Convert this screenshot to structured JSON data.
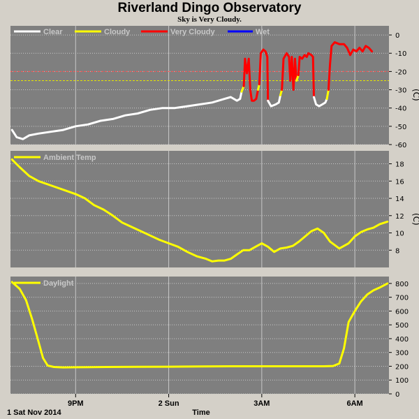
{
  "header": {
    "title": "Riverland Dingo Observatory",
    "subtitle": "Sky is Very Cloudy."
  },
  "colors": {
    "panel_bg": "#7f7f7f",
    "page_bg": "#d4d0c8",
    "grid": "#c8c8c8",
    "clear": "#ffffff",
    "cloudy": "#ffff00",
    "very_cloudy": "#ff0000",
    "wet": "#0000ff",
    "threshold_red": "#ff5050",
    "threshold_yellow": "#e6e600",
    "legend_text": "#c8c8c8"
  },
  "x_axis": {
    "label": "Time",
    "start_label": "1 Sat Nov 2014",
    "ticks": [
      {
        "hour": 21,
        "label": "9PM"
      },
      {
        "hour": 24,
        "label": "2 Sun"
      },
      {
        "hour": 27,
        "label": "3AM"
      },
      {
        "hour": 30,
        "label": "6AM"
      }
    ],
    "range_hours": [
      18.9,
      31.1
    ]
  },
  "chart_data": [
    {
      "type": "line",
      "panel": "sky",
      "legend": [
        "Clear",
        "Cloudy",
        "Very Cloudy",
        "Wet"
      ],
      "ylabel": "(C)",
      "ylim": [
        -60,
        5
      ],
      "yticks": [
        0,
        -10,
        -20,
        -30,
        -40,
        -50,
        -60
      ],
      "thresholds": [
        {
          "value": -20,
          "color": "red"
        },
        {
          "value": -25,
          "color": "yellow"
        }
      ],
      "segments": [
        {
          "state": "clear",
          "points": [
            [
              18.95,
              -52
            ],
            [
              19.1,
              -56
            ],
            [
              19.3,
              -57
            ],
            [
              19.5,
              -55
            ],
            [
              19.8,
              -54
            ],
            [
              20.2,
              -53
            ],
            [
              20.6,
              -52
            ],
            [
              21.0,
              -50
            ],
            [
              21.4,
              -49
            ],
            [
              21.8,
              -47
            ],
            [
              22.2,
              -46
            ],
            [
              22.6,
              -44
            ],
            [
              23.0,
              -43
            ],
            [
              23.4,
              -41
            ],
            [
              23.8,
              -40
            ],
            [
              24.2,
              -40
            ],
            [
              24.6,
              -39
            ],
            [
              25.0,
              -38
            ],
            [
              25.4,
              -37
            ],
            [
              25.8,
              -35
            ],
            [
              26.0,
              -34
            ],
            [
              26.2,
              -36
            ],
            [
              26.3,
              -35
            ],
            [
              26.35,
              -31
            ]
          ]
        },
        {
          "state": "cloudy",
          "points": [
            [
              26.35,
              -31
            ],
            [
              26.42,
              -28
            ]
          ]
        },
        {
          "state": "very_cloudy",
          "points": [
            [
              26.42,
              -28
            ],
            [
              26.46,
              -13
            ],
            [
              26.52,
              -21
            ],
            [
              26.58,
              -13
            ],
            [
              26.63,
              -30
            ],
            [
              26.68,
              -36
            ],
            [
              26.75,
              -36
            ],
            [
              26.82,
              -35
            ],
            [
              26.88,
              -30
            ]
          ]
        },
        {
          "state": "cloudy",
          "points": [
            [
              26.88,
              -30
            ],
            [
              26.92,
              -27
            ]
          ]
        },
        {
          "state": "very_cloudy",
          "points": [
            [
              26.92,
              -27
            ],
            [
              26.97,
              -10
            ],
            [
              27.05,
              -8
            ],
            [
              27.12,
              -9
            ],
            [
              27.18,
              -12
            ],
            [
              27.2,
              -36
            ]
          ]
        },
        {
          "state": "clear",
          "points": [
            [
              27.2,
              -36
            ],
            [
              27.3,
              -39
            ],
            [
              27.45,
              -38
            ],
            [
              27.55,
              -37
            ],
            [
              27.6,
              -33
            ]
          ]
        },
        {
          "state": "cloudy",
          "points": [
            [
              27.6,
              -33
            ],
            [
              27.65,
              -30
            ]
          ]
        },
        {
          "state": "very_cloudy",
          "points": [
            [
              27.65,
              -30
            ],
            [
              27.7,
              -13
            ],
            [
              27.8,
              -10
            ],
            [
              27.88,
              -12
            ],
            [
              27.92,
              -25
            ],
            [
              27.97,
              -12
            ],
            [
              28.02,
              -30
            ],
            [
              28.07,
              -13
            ],
            [
              28.12,
              -25
            ]
          ]
        },
        {
          "state": "cloudy",
          "points": [
            [
              28.12,
              -25
            ],
            [
              28.18,
              -22
            ]
          ]
        },
        {
          "state": "very_cloudy",
          "points": [
            [
              28.18,
              -22
            ],
            [
              28.22,
              -12
            ],
            [
              28.3,
              -13
            ],
            [
              28.38,
              -11
            ],
            [
              28.45,
              -12
            ],
            [
              28.5,
              -10
            ],
            [
              28.6,
              -11
            ],
            [
              28.65,
              -12
            ],
            [
              28.68,
              -34
            ]
          ]
        },
        {
          "state": "clear",
          "points": [
            [
              28.68,
              -34
            ],
            [
              28.75,
              -38
            ],
            [
              28.85,
              -39
            ],
            [
              28.95,
              -38
            ],
            [
              29.05,
              -37
            ],
            [
              29.1,
              -35
            ]
          ]
        },
        {
          "state": "cloudy",
          "points": [
            [
              29.1,
              -35
            ],
            [
              29.15,
              -30
            ]
          ]
        },
        {
          "state": "very_cloudy",
          "points": [
            [
              29.15,
              -30
            ],
            [
              29.2,
              -16
            ],
            [
              29.25,
              -6
            ],
            [
              29.35,
              -4
            ],
            [
              29.5,
              -5
            ],
            [
              29.65,
              -5
            ],
            [
              29.75,
              -7
            ],
            [
              29.85,
              -11
            ],
            [
              29.95,
              -8
            ],
            [
              30.05,
              -9
            ],
            [
              30.15,
              -7
            ],
            [
              30.25,
              -9
            ],
            [
              30.35,
              -6
            ],
            [
              30.45,
              -7
            ],
            [
              30.55,
              -9
            ]
          ]
        }
      ]
    },
    {
      "type": "line",
      "panel": "ambient",
      "legend": [
        "Ambient Temp"
      ],
      "ylabel": "(C)",
      "ylim": [
        6,
        19.5
      ],
      "yticks": [
        8,
        10,
        12,
        14,
        16,
        18
      ],
      "series": [
        {
          "name": "Ambient Temp",
          "color": "yellow",
          "points": [
            [
              18.95,
              18.5
            ],
            [
              19.2,
              17.6
            ],
            [
              19.5,
              16.6
            ],
            [
              19.8,
              16.0
            ],
            [
              20.2,
              15.5
            ],
            [
              20.6,
              15.0
            ],
            [
              21.0,
              14.5
            ],
            [
              21.3,
              14.0
            ],
            [
              21.6,
              13.2
            ],
            [
              21.9,
              12.7
            ],
            [
              22.2,
              12.0
            ],
            [
              22.5,
              11.2
            ],
            [
              22.8,
              10.7
            ],
            [
              23.1,
              10.2
            ],
            [
              23.4,
              9.7
            ],
            [
              23.7,
              9.2
            ],
            [
              24.0,
              8.8
            ],
            [
              24.3,
              8.4
            ],
            [
              24.6,
              7.8
            ],
            [
              24.9,
              7.3
            ],
            [
              25.2,
              7.0
            ],
            [
              25.4,
              6.7
            ],
            [
              25.6,
              6.8
            ],
            [
              25.8,
              6.8
            ],
            [
              26.0,
              7.0
            ],
            [
              26.2,
              7.5
            ],
            [
              26.4,
              8.0
            ],
            [
              26.6,
              8.0
            ],
            [
              26.8,
              8.4
            ],
            [
              27.0,
              8.8
            ],
            [
              27.2,
              8.4
            ],
            [
              27.4,
              7.8
            ],
            [
              27.6,
              8.2
            ],
            [
              27.8,
              8.3
            ],
            [
              28.0,
              8.5
            ],
            [
              28.2,
              9.0
            ],
            [
              28.4,
              9.6
            ],
            [
              28.6,
              10.2
            ],
            [
              28.8,
              10.5
            ],
            [
              29.0,
              10.0
            ],
            [
              29.2,
              9.0
            ],
            [
              29.5,
              8.2
            ],
            [
              29.8,
              8.8
            ],
            [
              30.0,
              9.6
            ],
            [
              30.2,
              10.1
            ],
            [
              30.4,
              10.4
            ],
            [
              30.6,
              10.6
            ],
            [
              30.8,
              11.0
            ],
            [
              31.05,
              11.3
            ]
          ]
        }
      ]
    },
    {
      "type": "line",
      "panel": "daylight",
      "legend": [
        "Daylight"
      ],
      "ylim": [
        0,
        850
      ],
      "yticks": [
        0,
        100,
        200,
        300,
        400,
        500,
        600,
        700,
        800
      ],
      "series": [
        {
          "name": "Daylight",
          "color": "yellow",
          "points": [
            [
              18.95,
              810
            ],
            [
              19.2,
              760
            ],
            [
              19.4,
              680
            ],
            [
              19.6,
              540
            ],
            [
              19.8,
              380
            ],
            [
              19.95,
              260
            ],
            [
              20.1,
              205
            ],
            [
              20.3,
              195
            ],
            [
              20.6,
              192
            ],
            [
              21.0,
              193
            ],
            [
              22.0,
              195
            ],
            [
              23.0,
              196
            ],
            [
              24.0,
              197
            ],
            [
              25.0,
              199
            ],
            [
              26.0,
              200
            ],
            [
              27.0,
              200
            ],
            [
              28.0,
              200
            ],
            [
              29.0,
              200
            ],
            [
              29.3,
              202
            ],
            [
              29.5,
              220
            ],
            [
              29.65,
              330
            ],
            [
              29.8,
              520
            ],
            [
              30.0,
              600
            ],
            [
              30.2,
              670
            ],
            [
              30.4,
              720
            ],
            [
              30.6,
              750
            ],
            [
              30.8,
              770
            ],
            [
              31.05,
              800
            ]
          ]
        }
      ]
    }
  ]
}
